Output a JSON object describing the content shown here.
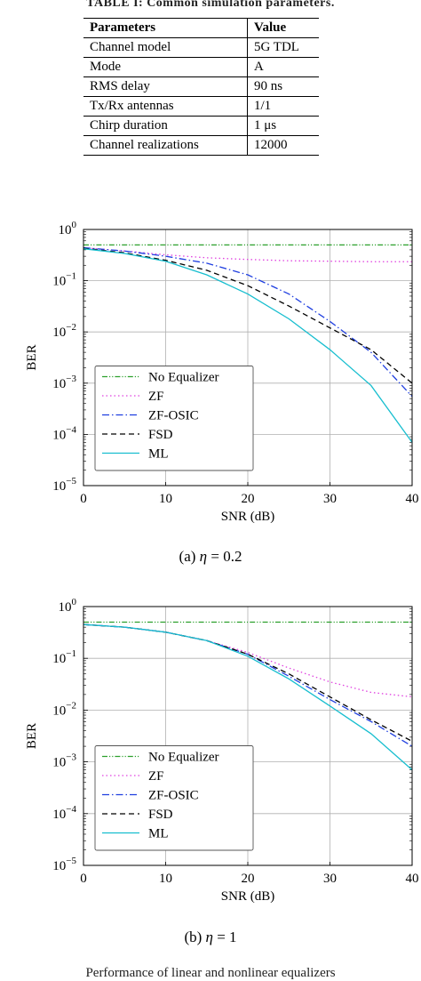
{
  "table": {
    "caption": "TABLE I: Common simulation parameters.",
    "headers": [
      "Parameters",
      "Value"
    ],
    "rows": [
      [
        "Channel model",
        "5G TDL"
      ],
      [
        "Mode",
        "A"
      ],
      [
        "RMS delay",
        "90 ns"
      ],
      [
        "Tx/Rx antennas",
        "1/1"
      ],
      [
        "Chirp duration",
        "1 μs"
      ],
      [
        "Channel realizations",
        "12000"
      ]
    ]
  },
  "figures": [
    {
      "caption_prefix": "(a) ",
      "caption_symbol": "η",
      "caption_value": " = 0.2"
    },
    {
      "caption_prefix": "(b) ",
      "caption_symbol": "η",
      "caption_value": " = 1"
    }
  ],
  "bottom_text": "Performance of linear and nonlinear equalizers",
  "chart_data": [
    {
      "type": "line",
      "xlabel": "SNR (dB)",
      "ylabel": "BER",
      "xlim": [
        0,
        40
      ],
      "ylim": [
        1e-05,
        1
      ],
      "yscale": "log",
      "xticks": [
        "0",
        "10",
        "20",
        "30",
        "40"
      ],
      "yticks": [
        {
          "base": "10",
          "exp": "0"
        },
        {
          "base": "10",
          "exp": "−1"
        },
        {
          "base": "10",
          "exp": "−2"
        },
        {
          "base": "10",
          "exp": "−3"
        },
        {
          "base": "10",
          "exp": "−4"
        },
        {
          "base": "10",
          "exp": "−5"
        }
      ],
      "grid": true,
      "legend": "bottom-left",
      "x": [
        0,
        5,
        10,
        15,
        20,
        25,
        30,
        35,
        40
      ],
      "series": [
        {
          "name": "No Equalizer",
          "color": "#2ca02c",
          "dash": "dashdotdot",
          "values": [
            0.5,
            0.5,
            0.5,
            0.5,
            0.5,
            0.5,
            0.5,
            0.5,
            0.5
          ]
        },
        {
          "name": "ZF",
          "color": "#e040e0",
          "dash": "dotted",
          "values": [
            0.44,
            0.38,
            0.32,
            0.28,
            0.26,
            0.245,
            0.24,
            0.235,
            0.235
          ]
        },
        {
          "name": "ZF-OSIC",
          "color": "#1f3fe0",
          "dash": "dashdot",
          "values": [
            0.44,
            0.38,
            0.3,
            0.22,
            0.13,
            0.055,
            0.016,
            0.004,
            0.00055
          ]
        },
        {
          "name": "FSD",
          "color": "#000000",
          "dash": "dashed",
          "values": [
            0.43,
            0.35,
            0.25,
            0.16,
            0.08,
            0.032,
            0.012,
            0.0045,
            0.001
          ]
        },
        {
          "name": "ML",
          "color": "#17becf",
          "dash": "solid",
          "values": [
            0.42,
            0.34,
            0.24,
            0.13,
            0.055,
            0.018,
            0.0045,
            0.0009,
            7e-05
          ]
        }
      ]
    },
    {
      "type": "line",
      "xlabel": "SNR (dB)",
      "ylabel": "BER",
      "xlim": [
        0,
        40
      ],
      "ylim": [
        1e-05,
        1
      ],
      "yscale": "log",
      "xticks": [
        "0",
        "10",
        "20",
        "30",
        "40"
      ],
      "yticks": [
        {
          "base": "10",
          "exp": "0"
        },
        {
          "base": "10",
          "exp": "−1"
        },
        {
          "base": "10",
          "exp": "−2"
        },
        {
          "base": "10",
          "exp": "−3"
        },
        {
          "base": "10",
          "exp": "−4"
        },
        {
          "base": "10",
          "exp": "−5"
        }
      ],
      "grid": true,
      "legend": "bottom-left",
      "x": [
        0,
        5,
        10,
        15,
        20,
        25,
        30,
        35,
        40
      ],
      "series": [
        {
          "name": "No Equalizer",
          "color": "#2ca02c",
          "dash": "dashdotdot",
          "values": [
            0.5,
            0.5,
            0.5,
            0.5,
            0.5,
            0.5,
            0.5,
            0.5,
            0.5
          ]
        },
        {
          "name": "ZF",
          "color": "#e040e0",
          "dash": "dotted",
          "values": [
            0.45,
            0.4,
            0.32,
            0.22,
            0.13,
            0.065,
            0.035,
            0.022,
            0.018
          ]
        },
        {
          "name": "ZF-OSIC",
          "color": "#1f3fe0",
          "dash": "dashdot",
          "values": [
            0.45,
            0.4,
            0.32,
            0.22,
            0.12,
            0.045,
            0.016,
            0.006,
            0.002
          ]
        },
        {
          "name": "FSD",
          "color": "#000000",
          "dash": "dashed",
          "values": [
            0.45,
            0.4,
            0.32,
            0.22,
            0.12,
            0.05,
            0.018,
            0.0065,
            0.0025
          ]
        },
        {
          "name": "ML",
          "color": "#17becf",
          "dash": "solid",
          "values": [
            0.45,
            0.4,
            0.32,
            0.22,
            0.11,
            0.04,
            0.012,
            0.0035,
            0.0007
          ]
        }
      ]
    }
  ]
}
